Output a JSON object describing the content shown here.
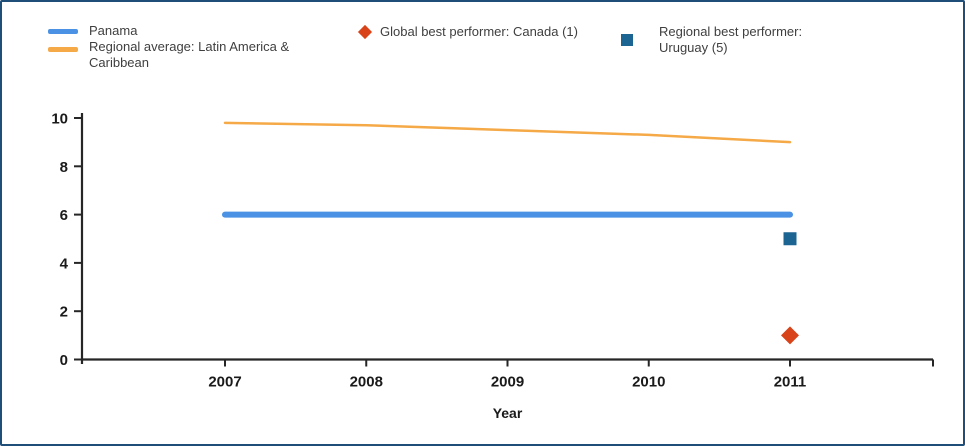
{
  "legend": {
    "items": [
      {
        "label": "Panama",
        "marker": "line",
        "color": "#4b92e5"
      },
      {
        "label": "Regional average: Latin America & Caribbean",
        "marker": "line",
        "color": "#f5a947"
      },
      {
        "label": "Global best performer: Canada (1)",
        "marker": "diamond",
        "color": "#d8431a"
      },
      {
        "label": "Regional best performer: Uruguay (5)",
        "marker": "square",
        "color": "#1c6492"
      }
    ]
  },
  "chart_data": {
    "type": "line",
    "x": [
      2007,
      2008,
      2009,
      2010,
      2011
    ],
    "series": [
      {
        "name": "Panama",
        "values": [
          6,
          6,
          6,
          6,
          6
        ],
        "color": "#4b92e5",
        "stroke_width": 6
      },
      {
        "name": "Regional average: Latin America & Caribbean",
        "values": [
          9.8,
          9.7,
          9.5,
          9.3,
          9.0
        ],
        "color": "#f5a947",
        "stroke_width": 2.5
      }
    ],
    "points": [
      {
        "name": "Global best performer: Canada (1)",
        "x": 2011,
        "y": 1,
        "shape": "diamond",
        "color": "#d8431a"
      },
      {
        "name": "Regional best performer: Uruguay (5)",
        "x": 2011,
        "y": 5,
        "shape": "square",
        "color": "#1c6492"
      }
    ],
    "title": "",
    "xlabel": "Year",
    "ylabel": "",
    "ylim": [
      0,
      10
    ],
    "yticks": [
      0,
      2,
      4,
      6,
      8,
      10
    ],
    "xticks": [
      "2007",
      "2008",
      "2009",
      "2010",
      "2011"
    ],
    "legend_position": "top",
    "grid": false
  },
  "colors": {
    "frame_border": "#1f4e79",
    "axis": "#262626",
    "tick_label": "#1a1a1a",
    "legend_text": "#3f3f3f",
    "background": "#ffffff"
  }
}
